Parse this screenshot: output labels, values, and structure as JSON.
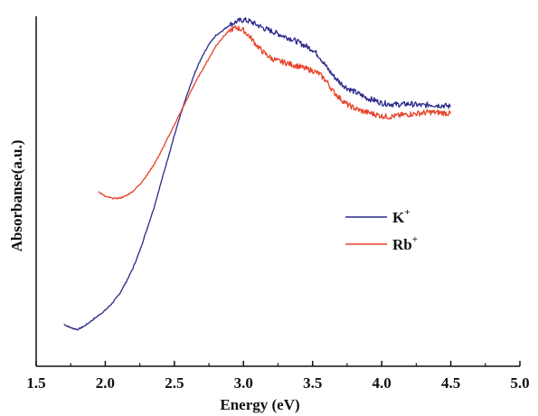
{
  "chart_data": {
    "type": "line",
    "title": "",
    "xlabel": "Energy (eV)",
    "ylabel": "Absorbanse(a.u.)",
    "xlim": [
      1.5,
      5.0
    ],
    "ylim": [
      0,
      1.0
    ],
    "xticks": [
      "1.5",
      "2.0",
      "2.5",
      "3.0",
      "3.5",
      "4.0",
      "4.5",
      "5.0"
    ],
    "grid": false,
    "legend_position": "right-middle",
    "series": [
      {
        "name": "K",
        "name_sup": "+",
        "color": "#2a2a8a",
        "x": [
          1.7,
          1.75,
          1.8,
          1.85,
          1.9,
          1.95,
          2.0,
          2.05,
          2.1,
          2.15,
          2.2,
          2.25,
          2.3,
          2.35,
          2.4,
          2.45,
          2.5,
          2.55,
          2.6,
          2.65,
          2.7,
          2.75,
          2.8,
          2.85,
          2.9,
          2.95,
          3.0,
          3.05,
          3.1,
          3.15,
          3.2,
          3.25,
          3.3,
          3.35,
          3.4,
          3.45,
          3.5,
          3.55,
          3.6,
          3.65,
          3.7,
          3.75,
          3.8,
          3.85,
          3.9,
          3.95,
          4.0,
          4.05,
          4.1,
          4.15,
          4.2,
          4.25,
          4.3,
          4.35,
          4.4,
          4.45,
          4.5
        ],
        "y": [
          0.12,
          0.11,
          0.105,
          0.115,
          0.13,
          0.145,
          0.16,
          0.18,
          0.205,
          0.24,
          0.28,
          0.33,
          0.39,
          0.45,
          0.52,
          0.59,
          0.66,
          0.725,
          0.785,
          0.84,
          0.885,
          0.92,
          0.945,
          0.96,
          0.975,
          0.985,
          0.99,
          0.985,
          0.975,
          0.965,
          0.958,
          0.95,
          0.942,
          0.935,
          0.925,
          0.915,
          0.905,
          0.885,
          0.855,
          0.83,
          0.81,
          0.795,
          0.785,
          0.775,
          0.765,
          0.76,
          0.752,
          0.75,
          0.748,
          0.748,
          0.75,
          0.747,
          0.745,
          0.748,
          0.746,
          0.745,
          0.742
        ]
      },
      {
        "name": "Rb",
        "name_sup": "+",
        "color": "#e8432a",
        "x": [
          1.95,
          2.0,
          2.05,
          2.1,
          2.15,
          2.2,
          2.25,
          2.3,
          2.35,
          2.4,
          2.45,
          2.5,
          2.55,
          2.6,
          2.65,
          2.7,
          2.75,
          2.8,
          2.85,
          2.9,
          2.95,
          3.0,
          3.05,
          3.1,
          3.15,
          3.2,
          3.25,
          3.3,
          3.35,
          3.4,
          3.45,
          3.5,
          3.55,
          3.6,
          3.65,
          3.7,
          3.75,
          3.8,
          3.85,
          3.9,
          3.95,
          4.0,
          4.05,
          4.1,
          4.15,
          4.2,
          4.25,
          4.3,
          4.35,
          4.4,
          4.45,
          4.5
        ],
        "y": [
          0.5,
          0.485,
          0.48,
          0.48,
          0.487,
          0.5,
          0.52,
          0.545,
          0.575,
          0.61,
          0.65,
          0.69,
          0.73,
          0.77,
          0.81,
          0.845,
          0.88,
          0.915,
          0.94,
          0.96,
          0.968,
          0.96,
          0.94,
          0.915,
          0.895,
          0.88,
          0.872,
          0.868,
          0.862,
          0.857,
          0.85,
          0.845,
          0.835,
          0.815,
          0.785,
          0.765,
          0.748,
          0.738,
          0.73,
          0.725,
          0.72,
          0.715,
          0.713,
          0.715,
          0.718,
          0.72,
          0.722,
          0.724,
          0.726,
          0.725,
          0.724,
          0.722
        ]
      }
    ]
  }
}
